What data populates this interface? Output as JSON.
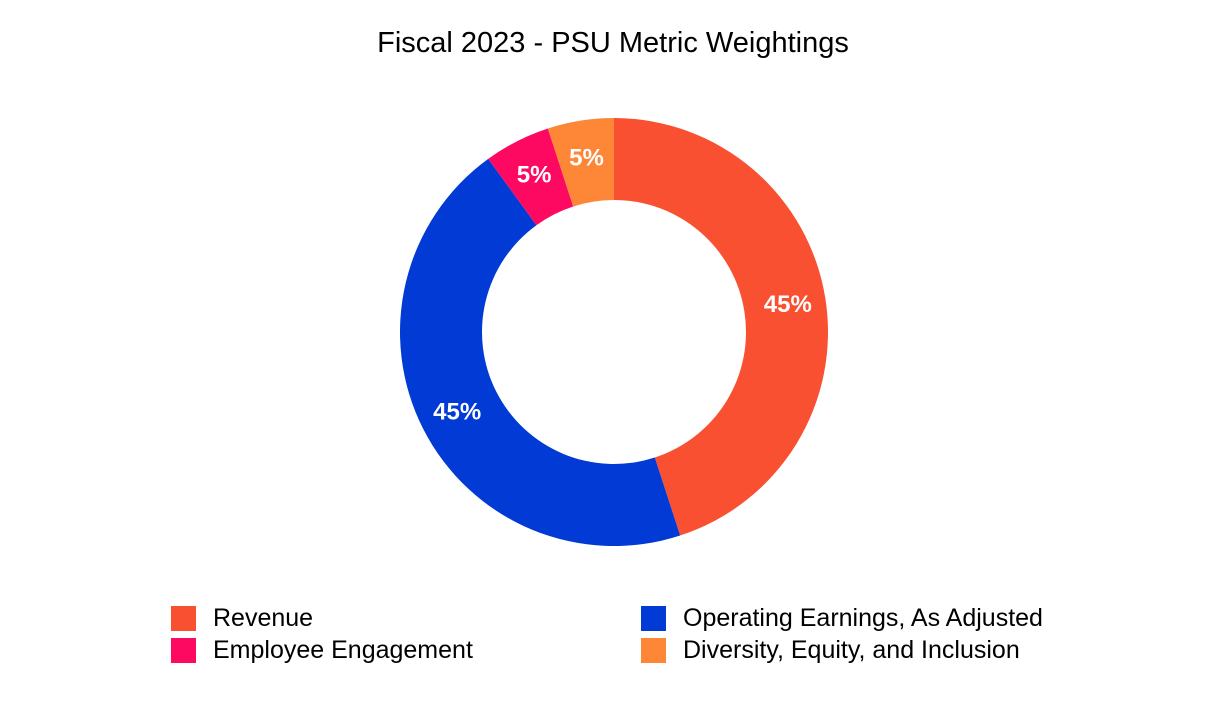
{
  "chart_data": {
    "type": "pie",
    "title": "Fiscal 2023 - PSU Metric Weightings",
    "donut": true,
    "start_angle_deg": 0,
    "direction": "clockwise",
    "slices": [
      {
        "name": "Revenue",
        "value": 45,
        "label": "45%",
        "color": "#f95032"
      },
      {
        "name": "Operating Earnings, As Adjusted",
        "value": 45,
        "label": "45%",
        "color": "#013ad4"
      },
      {
        "name": "Employee Engagement",
        "value": 5,
        "label": "5%",
        "color": "#fe0961"
      },
      {
        "name": "Diversity, Equity, and Inclusion",
        "value": 5,
        "label": "5%",
        "color": "#fd8637"
      }
    ],
    "legend": {
      "placement": "bottom",
      "entries": [
        "Revenue",
        "Operating Earnings, As Adjusted",
        "Employee Engagement",
        "Diversity, Equity, and Inclusion"
      ]
    }
  }
}
